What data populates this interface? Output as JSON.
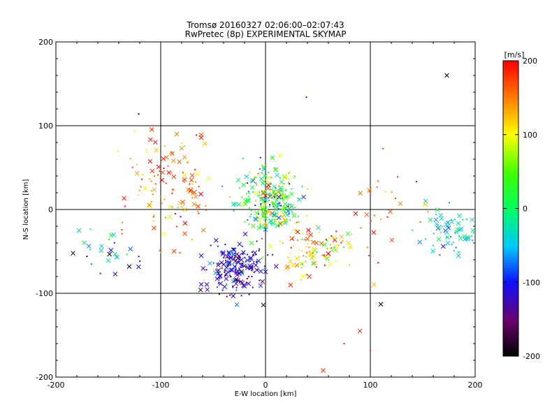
{
  "chart_data": {
    "type": "scatter",
    "title": "Tromsø 20160327 02:06:00–02:07:43",
    "subtitle": "RwPretec (8p) EXPERIMENTAL SKYMAP",
    "xlabel": "E-W location [km]",
    "ylabel": "N-S location [km]",
    "xlim": [
      -200,
      200
    ],
    "ylim": [
      -200,
      200
    ],
    "x_ticks": [
      "-200",
      "-100",
      "0",
      "100",
      "200"
    ],
    "y_ticks": [
      "200",
      "100",
      "0",
      "-100",
      "-200"
    ],
    "grid": true,
    "colorbar": {
      "unit": "[m/s]",
      "range": [
        -200,
        200
      ],
      "tick_labels": [
        "200",
        "100",
        "0",
        "-100",
        "-200"
      ],
      "colormap": "rainbow: black (-200) → violet → blue → cyan → green (0) → yellow → orange → red (200)"
    },
    "markers": {
      "cross": "x",
      "dot": "."
    },
    "clusters": [
      {
        "region": "west",
        "x_center": -92,
        "y_center": 28,
        "x_spread": 22,
        "y_spread": 30,
        "count": 130,
        "value_mean": 150,
        "value_spread": 40
      },
      {
        "region": "center-north",
        "x_center": 5,
        "y_center": 12,
        "x_spread": 14,
        "y_spread": 20,
        "count": 260,
        "value_mean": 20,
        "value_spread": 70
      },
      {
        "region": "south-west",
        "x_center": -28,
        "y_center": -70,
        "x_spread": 14,
        "y_spread": 16,
        "count": 200,
        "value_mean": -120,
        "value_spread": 30
      },
      {
        "region": "south-east",
        "x_center": 45,
        "y_center": -48,
        "x_spread": 18,
        "y_spread": 14,
        "count": 100,
        "value_mean": 110,
        "value_spread": 60
      },
      {
        "region": "east",
        "x_center": 175,
        "y_center": -30,
        "x_spread": 15,
        "y_spread": 14,
        "count": 70,
        "value_mean": -40,
        "value_spread": 30
      },
      {
        "region": "far-west",
        "x_center": -150,
        "y_center": -50,
        "x_spread": 18,
        "y_spread": 14,
        "count": 25,
        "value_mean": -70,
        "value_spread": 60
      },
      {
        "region": "east-middle",
        "x_center": 110,
        "y_center": 10,
        "x_spread": 20,
        "y_spread": 30,
        "count": 30,
        "value_mean": 170,
        "value_spread": 30
      }
    ],
    "outliers": [
      {
        "x": 173,
        "y": 160,
        "value": -200,
        "marker": "x"
      },
      {
        "x": -121,
        "y": 114,
        "value": -200,
        "marker": "."
      },
      {
        "x": 39,
        "y": 134,
        "value": -120,
        "marker": "."
      },
      {
        "x": 55,
        "y": -192,
        "value": 180,
        "marker": "x"
      },
      {
        "x": 75,
        "y": -160,
        "value": 180,
        "marker": "."
      },
      {
        "x": 90,
        "y": -145,
        "value": 180,
        "marker": "x"
      },
      {
        "x": 100,
        "y": -168,
        "value": 180,
        "marker": "."
      },
      {
        "x": 110,
        "y": -113,
        "value": -200,
        "marker": "x"
      },
      {
        "x": -2,
        "y": -114,
        "value": -200,
        "marker": "x"
      },
      {
        "x": -62,
        "y": -96,
        "value": -200,
        "marker": "x"
      },
      {
        "x": -130,
        "y": -68,
        "value": -200,
        "marker": "x"
      },
      {
        "x": -178,
        "y": -25,
        "value": -40,
        "marker": "x"
      }
    ]
  }
}
